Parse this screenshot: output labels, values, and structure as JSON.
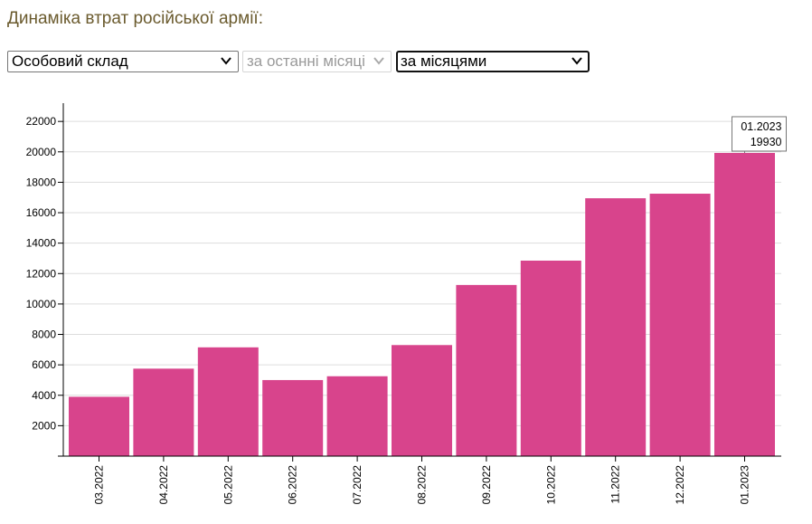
{
  "page": {
    "title": "Динаміка втрат російської армії:"
  },
  "controls": {
    "category_select": {
      "value": "Особовий склад",
      "icon": "chevron-down-icon"
    },
    "period_select": {
      "value": "за останні місяці",
      "disabled": true,
      "icon": "chevron-down-icon"
    },
    "grouping_select": {
      "value": "за місяцями",
      "focused": true,
      "icon": "chevron-down-icon"
    }
  },
  "colors": {
    "bar": "#d8448c",
    "grid": "#dddddd",
    "axis": "#000000",
    "title": "#6b5b2e"
  },
  "tooltip": {
    "label": "01.2023",
    "value": "19930"
  },
  "chart_data": {
    "type": "bar",
    "title": "",
    "xlabel": "",
    "ylabel": "",
    "categories": [
      "03.2022",
      "04.2022",
      "05.2022",
      "06.2022",
      "07.2022",
      "08.2022",
      "09.2022",
      "10.2022",
      "11.2022",
      "12.2022",
      "01.2023"
    ],
    "values": [
      3900,
      5750,
      7150,
      5000,
      5250,
      7300,
      11250,
      12850,
      16950,
      17250,
      19930
    ],
    "ylim": [
      0,
      23200
    ],
    "yticks": [
      2000,
      4000,
      6000,
      8000,
      10000,
      12000,
      14000,
      16000,
      18000,
      20000,
      22000
    ],
    "grid": true,
    "legend": "none",
    "x_tick_rotation": "vertical"
  }
}
